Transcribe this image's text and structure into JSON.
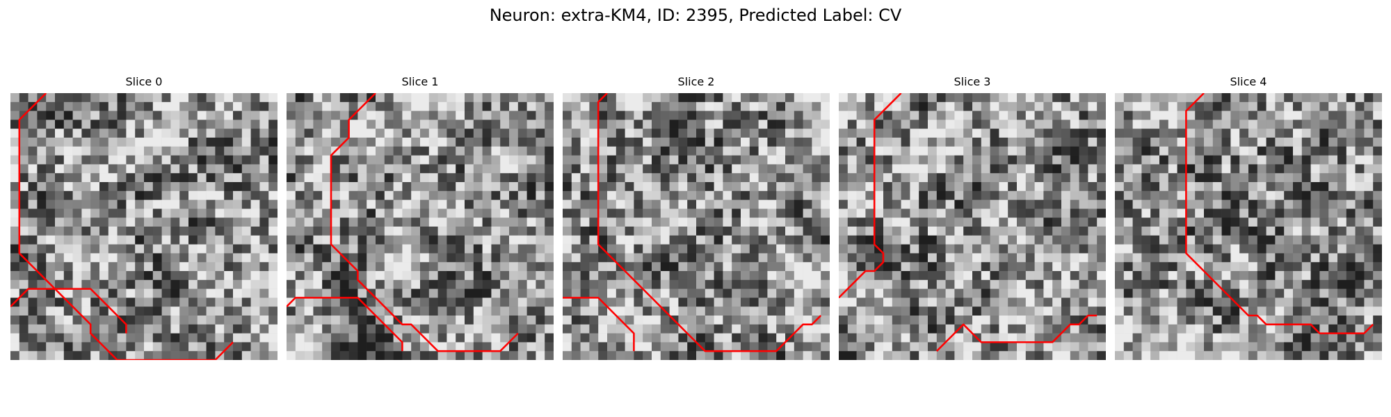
{
  "figure": {
    "title": "Neuron: extra-KM4, ID: 2395, Predicted Label: CV"
  },
  "colors": {
    "contour": "#ff0000",
    "background": "#ffffff"
  },
  "slices": [
    {
      "title": "Slice 0",
      "contours": [
        [
          [
            4,
            0
          ],
          [
            3,
            1
          ],
          [
            2,
            2
          ],
          [
            1,
            3
          ],
          [
            1,
            4
          ],
          [
            1,
            5
          ],
          [
            1,
            6
          ],
          [
            1,
            7
          ],
          [
            1,
            8
          ],
          [
            1,
            9
          ],
          [
            1,
            10
          ],
          [
            1,
            11
          ],
          [
            1,
            12
          ],
          [
            1,
            13
          ],
          [
            1,
            14
          ],
          [
            1,
            15
          ],
          [
            1,
            16
          ],
          [
            1,
            17
          ],
          [
            1,
            18
          ],
          [
            2,
            19
          ],
          [
            3,
            20
          ],
          [
            4,
            21
          ],
          [
            5,
            22
          ],
          [
            6,
            23
          ],
          [
            7,
            24
          ],
          [
            8,
            25
          ],
          [
            9,
            26
          ],
          [
            9,
            27
          ],
          [
            10,
            28
          ],
          [
            11,
            29
          ],
          [
            12,
            30
          ],
          [
            13,
            30
          ],
          [
            14,
            30
          ],
          [
            15,
            30
          ],
          [
            16,
            30
          ],
          [
            17,
            30
          ],
          [
            18,
            30
          ],
          [
            19,
            30
          ],
          [
            20,
            30
          ],
          [
            21,
            30
          ],
          [
            22,
            30
          ],
          [
            23,
            30
          ],
          [
            24,
            29
          ],
          [
            25,
            28
          ]
        ],
        [
          [
            0,
            24
          ],
          [
            1,
            23
          ],
          [
            2,
            22
          ],
          [
            3,
            22
          ],
          [
            4,
            22
          ],
          [
            5,
            22
          ],
          [
            6,
            22
          ],
          [
            7,
            22
          ],
          [
            8,
            22
          ],
          [
            9,
            22
          ],
          [
            10,
            23
          ],
          [
            11,
            24
          ],
          [
            12,
            25
          ],
          [
            13,
            26
          ],
          [
            13,
            27
          ]
        ]
      ]
    },
    {
      "title": "Slice 1",
      "contours": [
        [
          [
            10,
            0
          ],
          [
            9,
            1
          ],
          [
            8,
            2
          ],
          [
            7,
            3
          ],
          [
            7,
            4
          ],
          [
            7,
            5
          ],
          [
            6,
            6
          ],
          [
            5,
            7
          ],
          [
            5,
            8
          ],
          [
            5,
            9
          ],
          [
            5,
            10
          ],
          [
            5,
            11
          ],
          [
            5,
            12
          ],
          [
            5,
            13
          ],
          [
            5,
            14
          ],
          [
            5,
            15
          ],
          [
            5,
            16
          ],
          [
            5,
            17
          ],
          [
            6,
            18
          ],
          [
            7,
            19
          ],
          [
            8,
            20
          ],
          [
            8,
            21
          ],
          [
            9,
            22
          ],
          [
            10,
            23
          ],
          [
            11,
            24
          ],
          [
            12,
            25
          ],
          [
            13,
            26
          ],
          [
            14,
            26
          ],
          [
            15,
            27
          ],
          [
            16,
            28
          ],
          [
            17,
            29
          ],
          [
            18,
            29
          ],
          [
            19,
            29
          ],
          [
            20,
            29
          ],
          [
            21,
            29
          ],
          [
            22,
            29
          ],
          [
            23,
            29
          ],
          [
            24,
            29
          ],
          [
            25,
            28
          ],
          [
            26,
            27
          ]
        ],
        [
          [
            0,
            24
          ],
          [
            1,
            23
          ],
          [
            2,
            23
          ],
          [
            3,
            23
          ],
          [
            4,
            23
          ],
          [
            5,
            23
          ],
          [
            6,
            23
          ],
          [
            7,
            23
          ],
          [
            8,
            23
          ],
          [
            9,
            24
          ],
          [
            10,
            25
          ],
          [
            11,
            26
          ],
          [
            12,
            27
          ],
          [
            13,
            28
          ],
          [
            13,
            29
          ]
        ]
      ]
    },
    {
      "title": "Slice 2",
      "contours": [
        [
          [
            5,
            0
          ],
          [
            4,
            1
          ],
          [
            4,
            2
          ],
          [
            4,
            3
          ],
          [
            4,
            4
          ],
          [
            4,
            5
          ],
          [
            4,
            6
          ],
          [
            4,
            7
          ],
          [
            4,
            8
          ],
          [
            4,
            9
          ],
          [
            4,
            10
          ],
          [
            4,
            11
          ],
          [
            4,
            12
          ],
          [
            4,
            13
          ],
          [
            4,
            14
          ],
          [
            4,
            15
          ],
          [
            4,
            16
          ],
          [
            4,
            17
          ],
          [
            5,
            18
          ],
          [
            6,
            19
          ],
          [
            7,
            20
          ],
          [
            8,
            21
          ],
          [
            9,
            22
          ],
          [
            10,
            23
          ],
          [
            11,
            24
          ],
          [
            12,
            25
          ],
          [
            13,
            26
          ],
          [
            14,
            27
          ],
          [
            15,
            28
          ],
          [
            16,
            29
          ],
          [
            17,
            29
          ],
          [
            18,
            29
          ],
          [
            19,
            29
          ],
          [
            20,
            29
          ],
          [
            21,
            29
          ],
          [
            22,
            29
          ],
          [
            23,
            29
          ],
          [
            24,
            29
          ],
          [
            25,
            28
          ],
          [
            26,
            27
          ],
          [
            27,
            26
          ],
          [
            28,
            26
          ],
          [
            29,
            25
          ]
        ],
        [
          [
            0,
            23
          ],
          [
            1,
            23
          ],
          [
            2,
            23
          ],
          [
            3,
            23
          ],
          [
            4,
            23
          ],
          [
            5,
            24
          ],
          [
            6,
            25
          ],
          [
            7,
            26
          ],
          [
            8,
            27
          ],
          [
            8,
            28
          ],
          [
            8,
            29
          ]
        ]
      ]
    },
    {
      "title": "Slice 3",
      "contours": [
        [
          [
            7,
            0
          ],
          [
            6,
            1
          ],
          [
            5,
            2
          ],
          [
            4,
            3
          ],
          [
            4,
            4
          ],
          [
            4,
            5
          ],
          [
            4,
            6
          ],
          [
            4,
            7
          ],
          [
            4,
            8
          ],
          [
            4,
            9
          ],
          [
            4,
            10
          ],
          [
            4,
            11
          ],
          [
            4,
            12
          ],
          [
            4,
            13
          ],
          [
            4,
            14
          ],
          [
            4,
            15
          ],
          [
            4,
            16
          ],
          [
            4,
            17
          ],
          [
            5,
            18
          ],
          [
            5,
            19
          ],
          [
            4,
            20
          ],
          [
            3,
            20
          ],
          [
            2,
            21
          ],
          [
            1,
            22
          ],
          [
            0,
            23
          ]
        ],
        [
          [
            11,
            29
          ],
          [
            12,
            28
          ],
          [
            13,
            27
          ],
          [
            14,
            26
          ],
          [
            15,
            27
          ],
          [
            16,
            28
          ],
          [
            17,
            28
          ],
          [
            18,
            28
          ],
          [
            19,
            28
          ],
          [
            20,
            28
          ],
          [
            21,
            28
          ],
          [
            22,
            28
          ],
          [
            23,
            28
          ],
          [
            24,
            28
          ],
          [
            25,
            27
          ],
          [
            26,
            26
          ],
          [
            27,
            26
          ],
          [
            28,
            25
          ],
          [
            29,
            25
          ]
        ]
      ]
    },
    {
      "title": "Slice 4",
      "contours": [
        [
          [
            10,
            0
          ],
          [
            9,
            1
          ],
          [
            8,
            2
          ],
          [
            8,
            3
          ],
          [
            8,
            4
          ],
          [
            8,
            5
          ],
          [
            8,
            6
          ],
          [
            8,
            7
          ],
          [
            8,
            8
          ],
          [
            8,
            9
          ],
          [
            8,
            10
          ],
          [
            8,
            11
          ],
          [
            8,
            12
          ],
          [
            8,
            13
          ],
          [
            8,
            14
          ],
          [
            8,
            15
          ],
          [
            8,
            16
          ],
          [
            8,
            17
          ],
          [
            8,
            18
          ],
          [
            9,
            19
          ],
          [
            10,
            20
          ],
          [
            11,
            21
          ],
          [
            12,
            22
          ],
          [
            13,
            23
          ],
          [
            14,
            24
          ],
          [
            15,
            25
          ],
          [
            16,
            25
          ],
          [
            17,
            26
          ],
          [
            18,
            26
          ],
          [
            19,
            26
          ],
          [
            20,
            26
          ],
          [
            21,
            26
          ],
          [
            22,
            26
          ],
          [
            23,
            27
          ],
          [
            24,
            27
          ],
          [
            25,
            27
          ],
          [
            26,
            27
          ],
          [
            27,
            27
          ],
          [
            28,
            27
          ],
          [
            29,
            26
          ]
        ]
      ]
    }
  ]
}
